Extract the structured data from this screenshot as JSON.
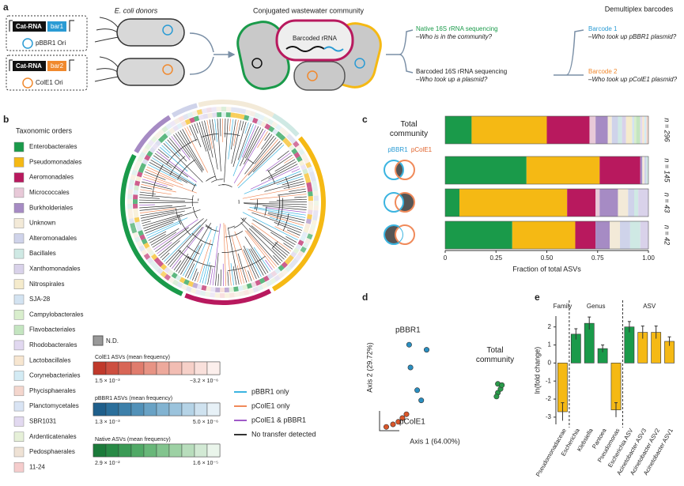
{
  "panel_a": {
    "label": "a",
    "donors_title": "E. coli donors",
    "plasmids": [
      {
        "cassette": "Cat-RNA",
        "barcode": "bar1",
        "origin": "pBBR1 Ori"
      },
      {
        "cassette": "Cat-RNA",
        "barcode": "bar2",
        "origin": "ColE1 Ori"
      }
    ],
    "community_title": "Conjugated wastewater community",
    "community_label": "Barcoded rRNA",
    "sequencing": [
      {
        "title": "Native 16S rRNA sequencing",
        "question": "–Who is in the community?"
      },
      {
        "title": "Barcoded 16S rRNA sequencing",
        "question": "–Who took up a plasmid?"
      }
    ],
    "demultiplex_title": "Demultiplex barcodes",
    "barcodes": [
      {
        "title": "Barcode 1",
        "question": "–Who took up pBBR1 plasmid?"
      },
      {
        "title": "Barcode 2",
        "question": "–Who took up pColE1 plasmid?"
      }
    ]
  },
  "panel_b": {
    "label": "b",
    "legend_title": "Taxonomic orders",
    "not_determined": "N.D.",
    "scales": [
      {
        "title": "ColE1 ASVs (mean frequency)",
        "low_label": "1.5 × 10⁻³",
        "high_label": "−3.2 × 10⁻⁶",
        "colors": [
          "#c0392b",
          "#cd4f40",
          "#d86656",
          "#e07c6d",
          "#e79384",
          "#eda99c",
          "#f2bdb3",
          "#f6d0c8",
          "#f9e0db",
          "#fcefec"
        ]
      },
      {
        "title": "pBBR1 ASVs (mean frequency)",
        "low_label": "1.3 × 10⁻³",
        "high_label": "5.0 × 10⁻⁶",
        "colors": [
          "#1f5f8b",
          "#2b6f9b",
          "#3d80aa",
          "#5291b8",
          "#69a2c5",
          "#82b3d1",
          "#9bc3dc",
          "#b5d3e6",
          "#cfe2ef",
          "#e7f1f7"
        ]
      },
      {
        "title": "Native ASVs (mean frequency)",
        "low_label": "2.9 × 10⁻²",
        "high_label": "1.6 × 10⁻⁵",
        "colors": [
          "#1b7a3a",
          "#288a46",
          "#3a9a55",
          "#50a966",
          "#68b779",
          "#82c48e",
          "#9dd1a4",
          "#b8ddbc",
          "#d2e9d4",
          "#eaf5eb"
        ]
      }
    ],
    "transfer_legend": [
      {
        "name": "pBBR1 only",
        "color": "#3bb4e0"
      },
      {
        "name": "pColE1 only",
        "color": "#f08a5a"
      },
      {
        "name": "pColE1 & pBBR1",
        "color": "#a05ac8"
      },
      {
        "name": "No transfer detected",
        "color": "#333333"
      }
    ]
  },
  "chart_data": [
    {
      "type": "bar",
      "orientation": "horizontal",
      "stacked": true,
      "panel_label": "c",
      "categories": [
        "Total community",
        null,
        null,
        null
      ],
      "n_labels": [
        "n = 296",
        "n = 145",
        "n = 43",
        "n = 42"
      ],
      "venn_labels": [
        "pBBR1",
        "pColE1"
      ],
      "xlabel": "Fraction of total ASVs",
      "xlim": [
        0,
        1
      ],
      "xticks": [
        0,
        0.25,
        {
          "value": 0.5,
          "label": "0.50"
        },
        0.75,
        {
          "value": 1,
          "label": "1.00"
        }
      ],
      "series": [
        {
          "name": "Enterobacterales",
          "color": "#1a9a4a",
          "values": [
            0.13,
            0.4,
            0.07,
            0.33
          ]
        },
        {
          "name": "Pseudomonadales",
          "color": "#f5b914",
          "values": [
            0.37,
            0.36,
            0.53,
            0.31
          ]
        },
        {
          "name": "Aeromonadales",
          "color": "#b8195e",
          "values": [
            0.21,
            0.2,
            0.14,
            0.1
          ]
        },
        {
          "name": "Micrococcales",
          "color": "#e8c9d8",
          "values": [
            0.03,
            0,
            0.02,
            0
          ]
        },
        {
          "name": "Burkholderiales",
          "color": "#a68bc4",
          "values": [
            0.06,
            0.01,
            0.09,
            0.07
          ]
        },
        {
          "name": "Unknown",
          "color": "#f3ead8",
          "values": [
            0.02,
            0.01,
            0.05,
            0.05
          ]
        },
        {
          "name": "Alteromonadales",
          "color": "#cfd3ea",
          "values": [
            0.03,
            0.01,
            0.03,
            0.05
          ]
        },
        {
          "name": "Bacillales",
          "color": "#cfe9e4",
          "values": [
            0.02,
            0.01,
            0.02,
            0.05
          ]
        },
        {
          "name": "Xanthomonadales",
          "color": "#d9d2ea",
          "values": [
            0.02,
            0,
            0.05,
            0.04
          ]
        },
        {
          "name": "Nitrospirales",
          "color": "#f5ebcc",
          "values": [
            0.03,
            0,
            0,
            0
          ]
        },
        {
          "name": "SJA-28",
          "color": "#d3e3f1",
          "values": [
            0.01,
            0,
            0,
            0
          ]
        },
        {
          "name": "Campylobacterales",
          "color": "#d9eecd",
          "values": [
            0.01,
            0,
            0,
            0
          ]
        },
        {
          "name": "Flavobacteriales",
          "color": "#c4e5c0",
          "values": [
            0.02,
            0,
            0,
            0
          ]
        },
        {
          "name": "Rhodobacterales",
          "color": "#e1d8f0",
          "values": [
            0.01,
            0,
            0,
            0
          ]
        },
        {
          "name": "Lactobacillales",
          "color": "#f7e6d0",
          "values": [
            0.01,
            0,
            0,
            0
          ]
        },
        {
          "name": "Corynebacteriales",
          "color": "#d3ebf4",
          "values": [
            0.01,
            0,
            0,
            0
          ]
        },
        {
          "name": "Phycisphaerales",
          "color": "#f4d6cd",
          "values": [
            0.01,
            0,
            0,
            0
          ]
        },
        {
          "name": "Planctomycetales",
          "color": "#d9e4f4",
          "values": [
            0,
            0,
            0,
            0
          ]
        },
        {
          "name": "SBR1031",
          "color": "#e2d9f0",
          "values": [
            0,
            0,
            0,
            0
          ]
        },
        {
          "name": "Ardenticatenales",
          "color": "#e6f0d8",
          "values": [
            0,
            0,
            0,
            0
          ]
        },
        {
          "name": "Pedosphaerales",
          "color": "#efe2d5",
          "values": [
            0,
            0,
            0,
            0
          ]
        },
        {
          "name": "11-24",
          "color": "#f5cccc",
          "values": [
            0,
            0,
            0,
            0
          ]
        }
      ]
    },
    {
      "type": "scatter",
      "panel_label": "d",
      "xlabel": "Axis 1 (64.00%)",
      "ylabel": "Axis 2 (29.72%)",
      "xlim": [
        0,
        1
      ],
      "ylim": [
        0,
        1
      ],
      "series": [
        {
          "name": "pBBR1",
          "color": "#2a8fc1",
          "x": [
            0.22,
            0.35,
            0.23,
            0.28,
            0.31
          ],
          "values": [
            0.68,
            0.64,
            0.5,
            0.32,
            0.24
          ]
        },
        {
          "name": "pColE1",
          "color": "#d9562a",
          "x": [
            0.05,
            0.1,
            0.14,
            0.17,
            0.2
          ],
          "values": [
            0.03,
            0.05,
            0.07,
            0.1,
            0.13
          ]
        },
        {
          "name": "Total community",
          "color": "#2a9a4a",
          "x": [
            0.88,
            0.9,
            0.88,
            0.91,
            0.87
          ],
          "values": [
            0.3,
            0.33,
            0.37,
            0.36,
            0.27
          ]
        }
      ]
    },
    {
      "type": "bar",
      "panel_label": "e",
      "ylabel": "ln(fold change)",
      "categories": [
        "Pseudomonadaceae",
        "Escherichia",
        "Klebsiella",
        "Pantoea",
        "Pseudomonas",
        "Escherichia ASV",
        "Acinetobacter ASV3",
        "Acinetobacter ASV2",
        "Acinetobacter ASV1"
      ],
      "values": [
        -2.7,
        1.6,
        2.2,
        0.8,
        -2.6,
        2.0,
        1.7,
        1.7,
        1.2
      ],
      "errors": [
        0.5,
        0.3,
        0.35,
        0.2,
        0.4,
        0.3,
        0.35,
        0.35,
        0.25
      ],
      "colors": [
        "#f5b914",
        "#1a9a4a",
        "#1a9a4a",
        "#1a9a4a",
        "#f5b914",
        "#1a9a4a",
        "#f5b914",
        "#f5b914",
        "#f5b914"
      ],
      "groups": [
        {
          "label": "Family",
          "count": 1
        },
        {
          "label": "Genus",
          "count": 4
        },
        {
          "label": "ASV",
          "count": 4
        }
      ],
      "ylim": [
        -3.4,
        2.6
      ],
      "yticks": [
        -3,
        -2,
        -1,
        0,
        1,
        2
      ]
    }
  ]
}
